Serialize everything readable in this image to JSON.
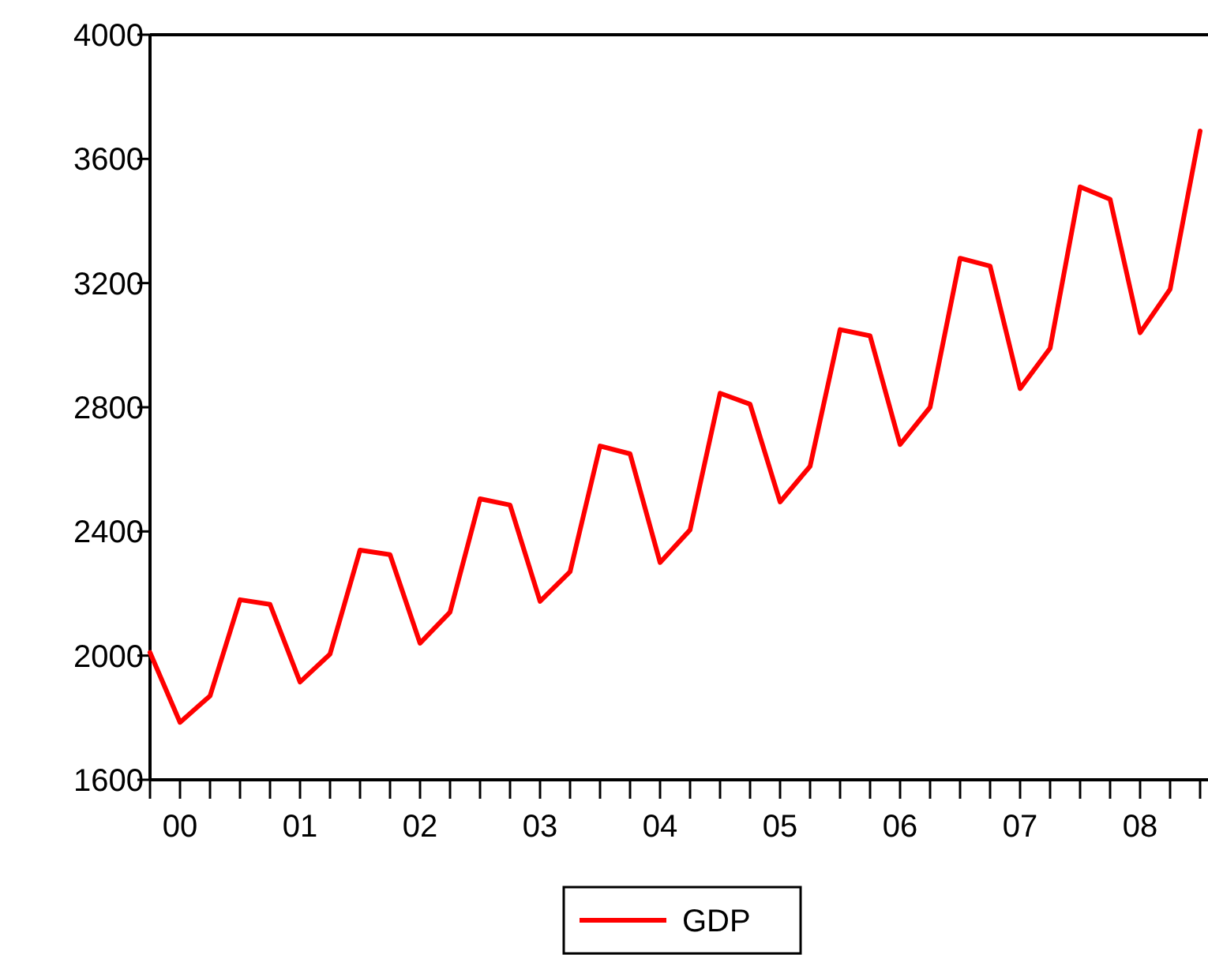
{
  "chart_data": {
    "type": "line",
    "categories": [
      null,
      "00",
      null,
      null,
      null,
      "01",
      null,
      null,
      null,
      "02",
      null,
      null,
      null,
      "03",
      null,
      null,
      null,
      "04",
      null,
      null,
      null,
      "05",
      null,
      null,
      null,
      "06",
      null,
      null,
      null,
      "07",
      null,
      null,
      null,
      "08",
      null,
      null
    ],
    "series": [
      {
        "name": "GDP",
        "color": "#ff0000",
        "values": [
          2010,
          1785,
          1870,
          2180,
          2165,
          1915,
          2005,
          2340,
          2325,
          2040,
          2140,
          2505,
          2485,
          2175,
          2270,
          2675,
          2650,
          2300,
          2405,
          2845,
          2810,
          2495,
          2610,
          3050,
          3030,
          2680,
          2800,
          3280,
          3255,
          2860,
          2990,
          3510,
          3470,
          3040,
          3180,
          3690
        ]
      }
    ],
    "ylim": [
      1600,
      4000
    ],
    "yticks": [
      1600,
      2000,
      2400,
      2800,
      3200,
      3600,
      4000
    ],
    "grid": false,
    "legend": "bottom",
    "marker": "none",
    "line_style": "solid"
  }
}
